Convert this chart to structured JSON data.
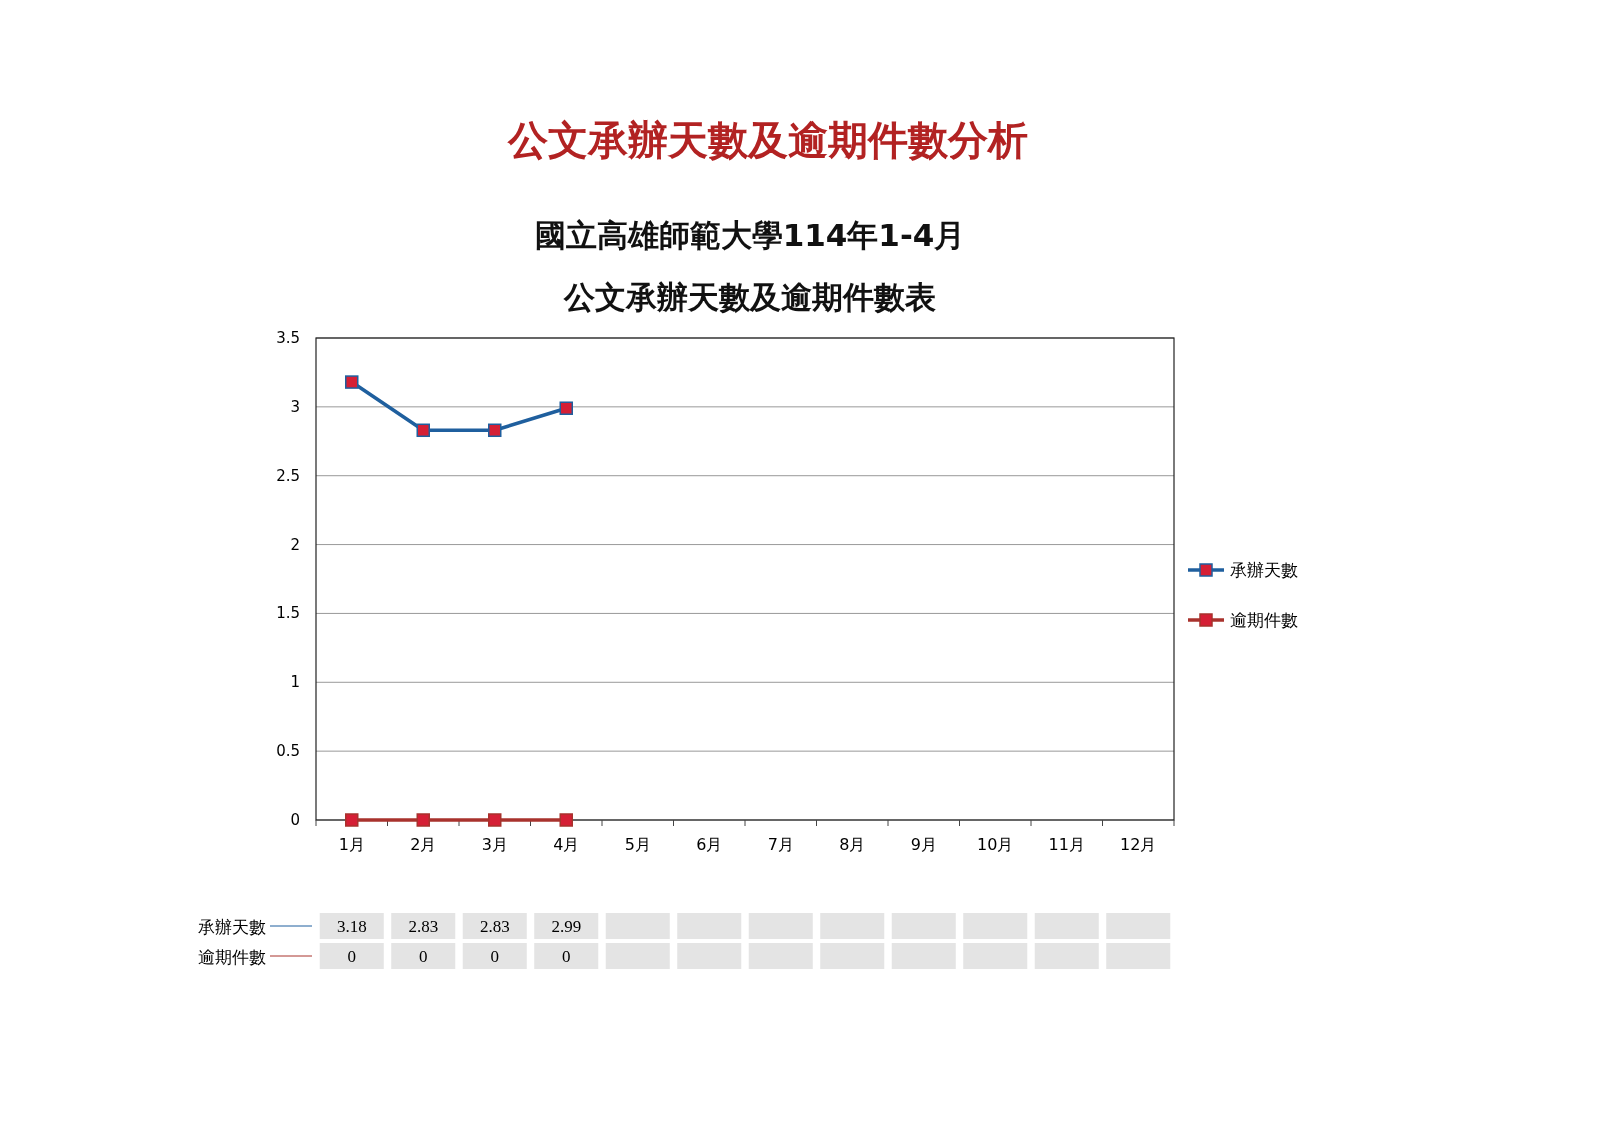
{
  "chart_data": {
    "type": "line",
    "title": "公文承辦天數及逾期件數分析",
    "subtitle": "國立高雄師範大學114年1-4月",
    "annotations": [
      "公文承辦天數及逾期件數表"
    ],
    "categories": [
      "1月",
      "2月",
      "3月",
      "4月",
      "5月",
      "6月",
      "7月",
      "8月",
      "9月",
      "10月",
      "11月",
      "12月"
    ],
    "series": [
      {
        "name": "承辦天數",
        "color": "#1f5f9e",
        "values": [
          3.18,
          2.83,
          2.83,
          2.99,
          null,
          null,
          null,
          null,
          null,
          null,
          null,
          null
        ]
      },
      {
        "name": "逾期件數",
        "color": "#a8322d",
        "values": [
          0,
          0,
          0,
          0,
          null,
          null,
          null,
          null,
          null,
          null,
          null,
          null
        ]
      }
    ],
    "ylim": [
      0,
      3.5
    ],
    "yticks": [
      0,
      0.5,
      1,
      1.5,
      2,
      2.5,
      3,
      3.5
    ],
    "grid": "y",
    "legend": "right",
    "marker": "square",
    "line_style": "solid",
    "data_labels": true
  }
}
